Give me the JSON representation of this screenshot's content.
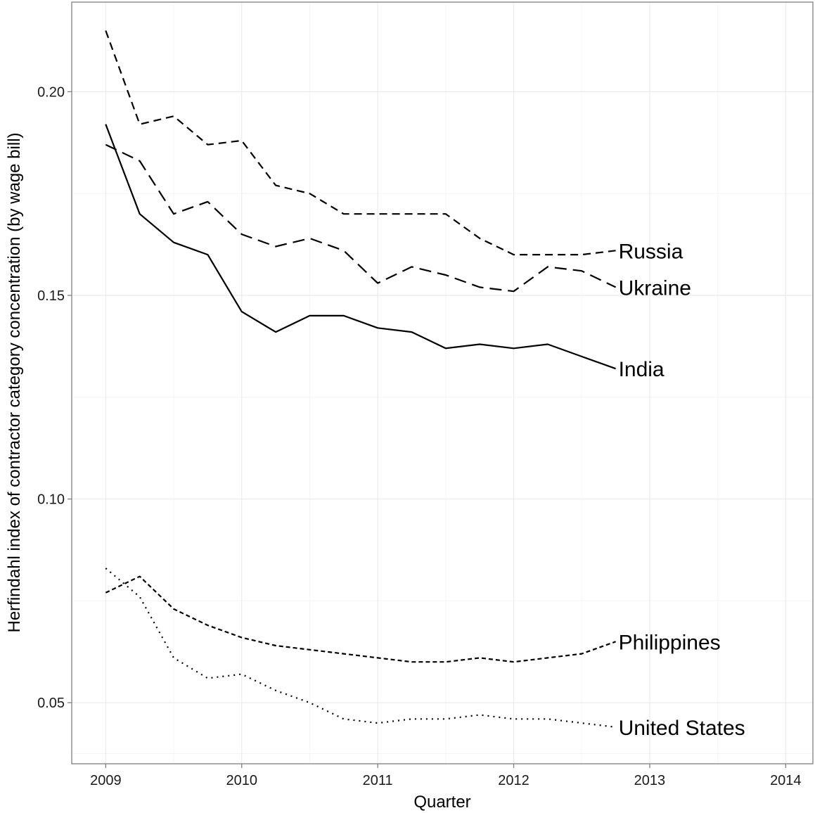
{
  "chart_data": {
    "type": "line",
    "title": "",
    "xlabel": "Quarter",
    "ylabel": "Herfindahl index of contractor category concentration (by wage bill)",
    "xlim": [
      2008.75,
      2014.2
    ],
    "ylim": [
      0.035,
      0.222
    ],
    "x_ticks": [
      2009,
      2010,
      2011,
      2012,
      2013,
      2014
    ],
    "x_tick_labels": [
      "2009",
      "2010",
      "2011",
      "2012",
      "2013",
      "2014"
    ],
    "y_ticks": [
      0.05,
      0.1,
      0.15,
      0.2
    ],
    "y_tick_labels": [
      "0.05",
      "0.10",
      "0.15",
      "0.20"
    ],
    "grid": true,
    "legend": "none",
    "x": [
      2009.0,
      2009.25,
      2009.5,
      2009.75,
      2010.0,
      2010.25,
      2010.5,
      2010.75,
      2011.0,
      2011.25,
      2011.5,
      2011.75,
      2012.0,
      2012.25,
      2012.5,
      2012.75
    ],
    "series": [
      {
        "name": "Russia",
        "dash": "11,7",
        "values": [
          0.215,
          0.192,
          0.194,
          0.187,
          0.188,
          0.177,
          0.175,
          0.17,
          0.17,
          0.17,
          0.17,
          0.164,
          0.16,
          0.16,
          0.16,
          0.161
        ]
      },
      {
        "name": "Ukraine",
        "dash": "17,9",
        "values": [
          0.187,
          0.183,
          0.17,
          0.173,
          0.165,
          0.162,
          0.164,
          0.161,
          0.153,
          0.157,
          0.155,
          0.152,
          0.151,
          0.157,
          0.156,
          0.152
        ]
      },
      {
        "name": "India",
        "dash": "",
        "values": [
          0.192,
          0.17,
          0.163,
          0.16,
          0.146,
          0.141,
          0.145,
          0.145,
          0.142,
          0.141,
          0.137,
          0.138,
          0.137,
          0.138,
          0.135,
          0.132
        ]
      },
      {
        "name": "Philippines",
        "dash": "6,4",
        "values": [
          0.077,
          0.081,
          0.073,
          0.069,
          0.066,
          0.064,
          0.063,
          0.062,
          0.061,
          0.06,
          0.06,
          0.061,
          0.06,
          0.061,
          0.062,
          0.065
        ]
      },
      {
        "name": "United States",
        "dash": "2,6",
        "values": [
          0.083,
          0.076,
          0.061,
          0.056,
          0.057,
          0.053,
          0.05,
          0.046,
          0.045,
          0.046,
          0.046,
          0.047,
          0.046,
          0.046,
          0.045,
          0.044
        ]
      }
    ]
  }
}
